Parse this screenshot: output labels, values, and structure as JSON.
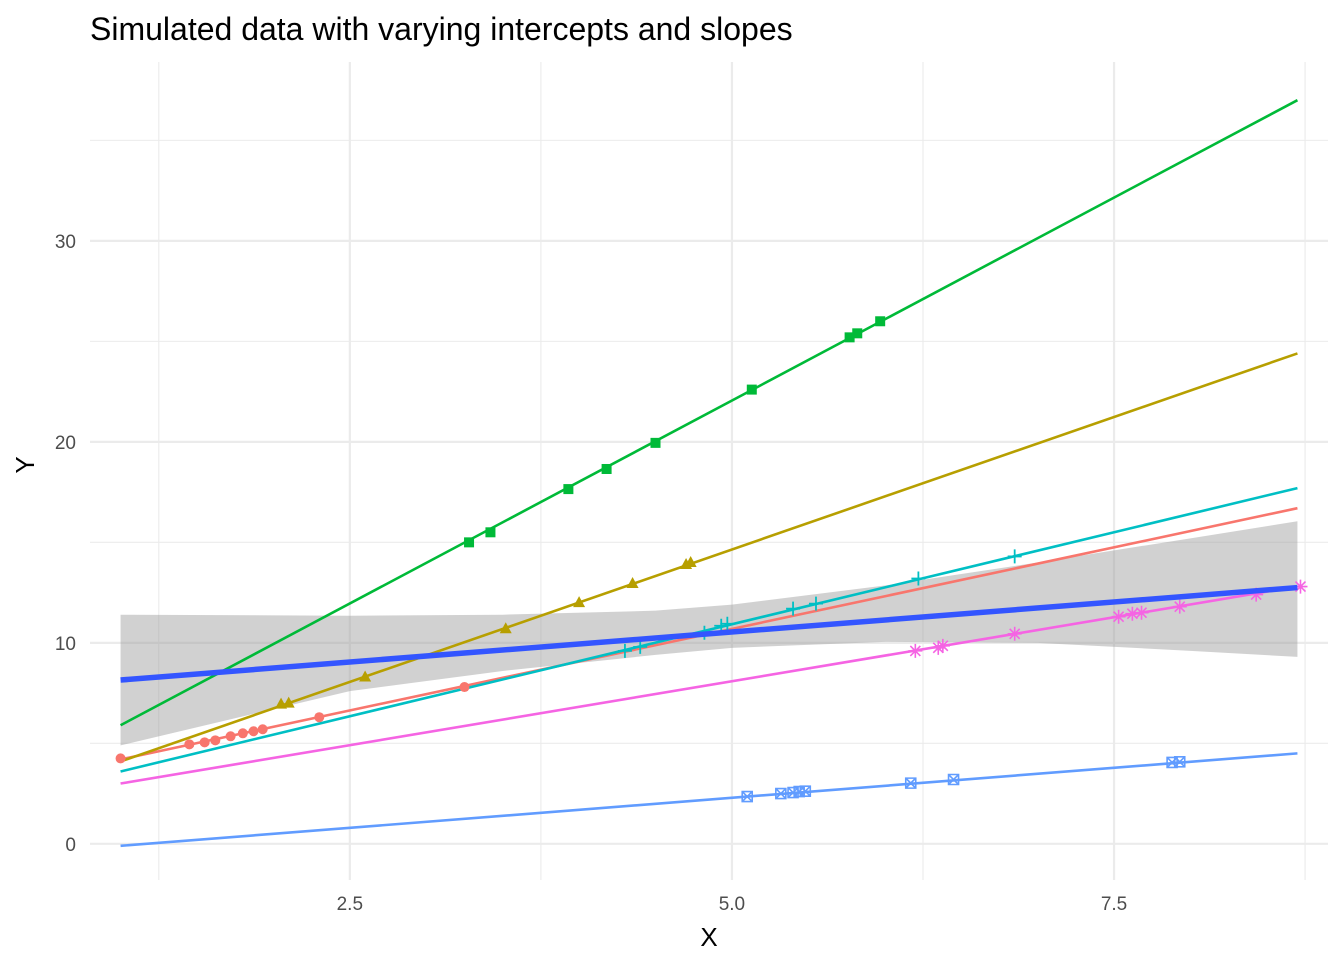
{
  "chart_data": {
    "type": "scatter",
    "title": "Simulated data with varying intercepts and slopes",
    "xlabel": "X",
    "ylabel": "Y",
    "xlim": [
      0.8,
      8.9
    ],
    "ylim": [
      -1.8,
      38.9
    ],
    "x_ticks": [
      2.5,
      5.0,
      7.5
    ],
    "x_tick_labels": [
      "2.5",
      "5.0",
      "7.5"
    ],
    "y_ticks": [
      0,
      10,
      20,
      30
    ],
    "y_tick_labels": [
      "0",
      "10",
      "20",
      "30"
    ],
    "grid": true,
    "legend": "none",
    "groups": [
      {
        "color": "#F8766D",
        "marker": "circle",
        "line": {
          "x": [
            1.0,
            8.7
          ],
          "y": [
            4.2,
            16.7
          ]
        },
        "points": {
          "x": [
            1.0,
            1.45,
            1.55,
            1.62,
            1.72,
            1.8,
            1.87,
            1.93,
            2.3,
            3.25
          ],
          "y": [
            4.25,
            4.95,
            5.05,
            5.15,
            5.35,
            5.5,
            5.6,
            5.7,
            6.3,
            7.8
          ]
        }
      },
      {
        "color": "#B79F00",
        "marker": "triangle",
        "line": {
          "x": [
            1.0,
            8.7
          ],
          "y": [
            4.1,
            24.4
          ]
        },
        "points": {
          "x": [
            2.05,
            2.1,
            2.6,
            3.52,
            4.0,
            4.35,
            4.7,
            4.73
          ],
          "y": [
            6.95,
            7.0,
            8.3,
            10.7,
            12.0,
            12.95,
            13.9,
            14.0
          ]
        }
      },
      {
        "color": "#00BA38",
        "marker": "square",
        "line": {
          "x": [
            1.0,
            8.7
          ],
          "y": [
            5.9,
            37.0
          ]
        },
        "points": {
          "x": [
            3.28,
            3.42,
            3.93,
            4.18,
            4.5,
            5.13,
            5.77,
            5.82,
            5.97
          ],
          "y": [
            15.0,
            15.5,
            17.65,
            18.65,
            19.95,
            22.6,
            25.2,
            25.4,
            26.0
          ]
        }
      },
      {
        "color": "#00BFC4",
        "marker": "plus",
        "line": {
          "x": [
            1.0,
            8.7
          ],
          "y": [
            3.6,
            17.7
          ]
        },
        "points": {
          "x": [
            4.3,
            4.4,
            4.82,
            4.93,
            4.97,
            5.4,
            5.55,
            6.22,
            6.85
          ],
          "y": [
            9.6,
            9.8,
            10.5,
            10.85,
            10.95,
            11.7,
            11.95,
            13.2,
            14.3
          ]
        }
      },
      {
        "color": "#619CFF",
        "marker": "square-cross",
        "line": {
          "x": [
            1.0,
            8.7
          ],
          "y": [
            -0.1,
            4.5
          ]
        },
        "points": {
          "x": [
            5.1,
            5.32,
            5.4,
            5.44,
            5.48,
            6.17,
            6.45,
            7.88,
            7.93
          ],
          "y": [
            2.35,
            2.5,
            2.55,
            2.6,
            2.62,
            3.02,
            3.2,
            4.05,
            4.08
          ]
        }
      },
      {
        "color": "#F564E3",
        "marker": "asterisk",
        "line": {
          "x": [
            1.0,
            8.7
          ],
          "y": [
            3.0,
            12.8
          ]
        },
        "points": {
          "x": [
            6.2,
            6.35,
            6.38,
            6.85,
            7.53,
            7.62,
            7.68,
            7.93,
            8.43,
            8.72
          ],
          "y": [
            9.6,
            9.75,
            9.85,
            10.45,
            11.3,
            11.45,
            11.5,
            11.8,
            12.4,
            12.8
          ]
        }
      }
    ],
    "fit": {
      "color": "#3355FF",
      "line": {
        "x": [
          1.0,
          8.7
        ],
        "y": [
          8.15,
          12.75
        ]
      },
      "band": {
        "x": [
          1.0,
          2.5,
          3.5,
          4.5,
          5.0,
          6.0,
          7.0,
          8.0,
          8.7
        ],
        "lower": [
          4.9,
          7.6,
          8.6,
          9.4,
          9.75,
          10.05,
          10.0,
          9.6,
          9.3
        ],
        "upper": [
          11.4,
          11.35,
          11.4,
          11.6,
          11.9,
          12.85,
          14.0,
          15.2,
          16.05
        ]
      }
    }
  }
}
